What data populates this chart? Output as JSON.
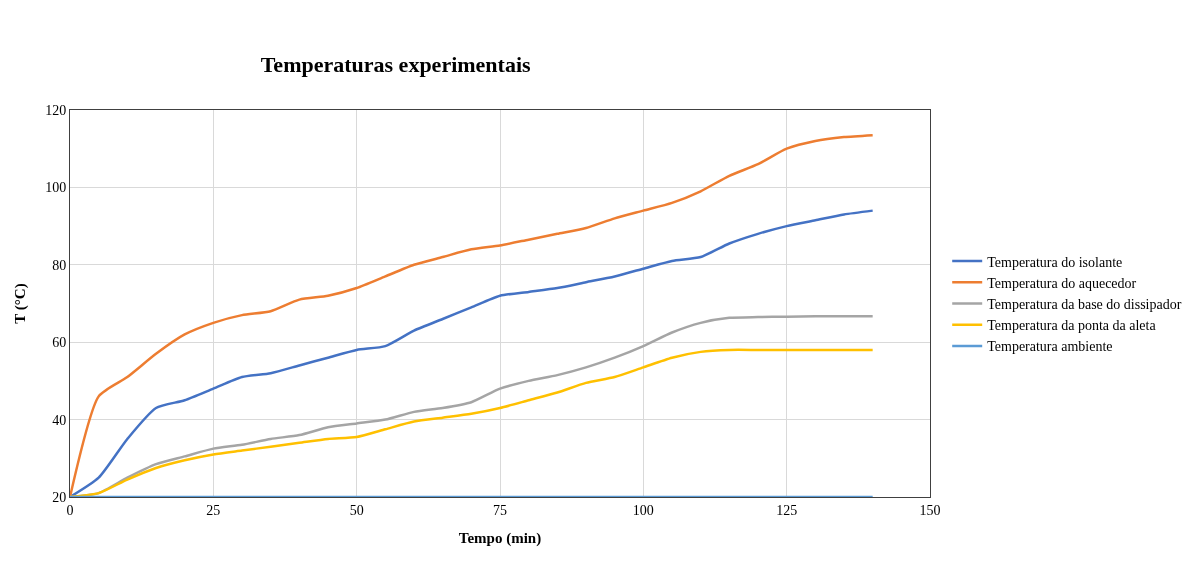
{
  "chart_data": {
    "type": "line",
    "title": "Temperaturas experimentais",
    "xlabel": "Tempo (min)",
    "ylabel": "T (°C)",
    "x": [
      0,
      5,
      10,
      15,
      20,
      25,
      30,
      35,
      40,
      45,
      50,
      55,
      60,
      65,
      70,
      75,
      80,
      85,
      90,
      95,
      100,
      105,
      110,
      115,
      120,
      125,
      130,
      135,
      140
    ],
    "series": [
      {
        "name": "Temperatura do isolante",
        "color": "#4472c4",
        "values": [
          20,
          25,
          35,
          43,
          45,
          48,
          51,
          52,
          54,
          56,
          58,
          59,
          63,
          66,
          69,
          72,
          73,
          74,
          75.5,
          77,
          79,
          81,
          82,
          85.5,
          88,
          90,
          91.5,
          93,
          94
        ]
      },
      {
        "name": "Temperatura do aquecedor",
        "color": "#ed7d31",
        "values": [
          20,
          46,
          51,
          57,
          62,
          65,
          67,
          68,
          71,
          72,
          74,
          77,
          80,
          82,
          84,
          85,
          86.5,
          88,
          89.5,
          92,
          94,
          96,
          99,
          103,
          106,
          110,
          112,
          113,
          113.5
        ]
      },
      {
        "name": "Temperatura da base do dissipador",
        "color": "#a5a5a5",
        "values": [
          20,
          21,
          25,
          28.5,
          30.5,
          32.5,
          33.5,
          35,
          36,
          38,
          39,
          40,
          42,
          43,
          44.5,
          48,
          50,
          51.5,
          53.5,
          56,
          59,
          62.5,
          65,
          66.3,
          66.5,
          66.6,
          66.7,
          66.7,
          66.7
        ]
      },
      {
        "name": "Temperatura da ponta da aleta",
        "color": "#ffc000",
        "values": [
          20,
          21,
          24.5,
          27.5,
          29.5,
          31,
          32,
          33,
          34,
          35,
          35.5,
          37.5,
          39.5,
          40.5,
          41.5,
          43,
          45,
          47,
          49.5,
          51,
          53.5,
          56,
          57.5,
          58,
          58,
          58,
          58,
          58,
          58
        ]
      },
      {
        "name": "Temperatura ambiente",
        "color": "#5b9bd5",
        "values": [
          20,
          20,
          20,
          20,
          20,
          20,
          20,
          20,
          20,
          20,
          20,
          20,
          20,
          20,
          20,
          20,
          20,
          20,
          20,
          20,
          20,
          20,
          20,
          20,
          20,
          20,
          20,
          20,
          20
        ]
      }
    ],
    "xlim": [
      0,
      150
    ],
    "xticks": [
      0,
      25,
      50,
      75,
      100,
      125,
      150
    ],
    "ylim": [
      20,
      120
    ],
    "yticks": [
      20,
      40,
      60,
      80,
      100,
      120
    ],
    "grid": true,
    "legend": "right",
    "marker": "none",
    "line_style": "solid"
  }
}
